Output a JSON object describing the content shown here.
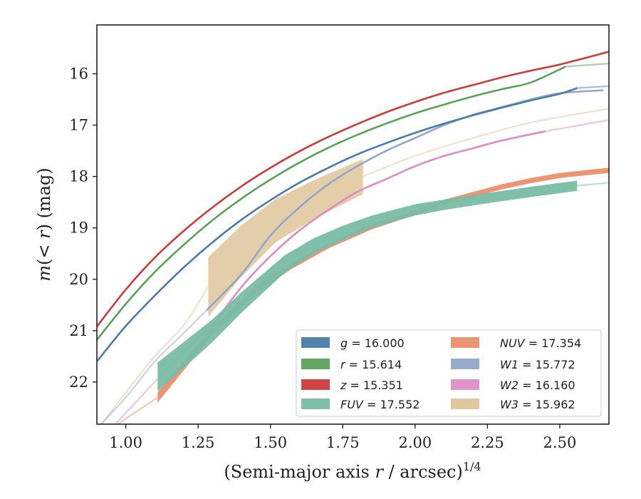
{
  "chart_data": {
    "type": "line",
    "title": "",
    "xlabel": "(Semi-major axis r / arcsec)",
    "xlabel_parts": {
      "pre": "(Semi-major axis ",
      "var": "r",
      "post": " / arcsec)",
      "sup": "1/4"
    },
    "ylabel": "m(< r) (mag)",
    "ylabel_parts": {
      "m": "m",
      "open": "(",
      "lt": "< ",
      "r": "r",
      "close": ")",
      "unit": " (mag)"
    },
    "xlim": [
      0.9,
      2.67
    ],
    "ylim": [
      22.82,
      15.05
    ],
    "y_inverted": true,
    "grid": false,
    "x_ticks": [
      "1.00",
      "1.25",
      "1.50",
      "1.75",
      "2.00",
      "2.25",
      "2.50"
    ],
    "y_ticks": [
      "16",
      "17",
      "18",
      "19",
      "20",
      "21",
      "22"
    ],
    "legend": {
      "placement": "lower-right",
      "columns": 2
    },
    "series": [
      {
        "name": "g = 16.000",
        "key": "g",
        "color": "#4c7ba7",
        "style": "line",
        "x": [
          0.9,
          1.0,
          1.1,
          1.2,
          1.3,
          1.4,
          1.5,
          1.6,
          1.7,
          1.8,
          1.9,
          2.0,
          2.1,
          2.2,
          2.3,
          2.4,
          2.5,
          2.56
        ],
        "y": [
          21.6,
          20.91,
          20.32,
          19.77,
          19.28,
          18.84,
          18.46,
          18.12,
          17.83,
          17.57,
          17.35,
          17.15,
          16.97,
          16.81,
          16.66,
          16.52,
          16.39,
          16.28
        ],
        "faded_x": [
          2.56,
          2.67
        ],
        "faded_y": [
          16.28,
          16.24
        ]
      },
      {
        "name": "r = 15.614",
        "key": "r",
        "color": "#5aa25a",
        "style": "line",
        "x": [
          0.9,
          1.0,
          1.1,
          1.2,
          1.3,
          1.4,
          1.5,
          1.6,
          1.7,
          1.8,
          1.9,
          2.0,
          2.1,
          2.2,
          2.3,
          2.4,
          2.52
        ],
        "y": [
          21.18,
          20.48,
          19.86,
          19.33,
          18.85,
          18.43,
          18.06,
          17.73,
          17.44,
          17.19,
          16.97,
          16.77,
          16.6,
          16.44,
          16.3,
          16.17,
          15.86
        ],
        "faded_x": [
          2.52,
          2.67
        ],
        "faded_y": [
          15.86,
          15.8
        ]
      },
      {
        "name": "z = 15.351",
        "key": "z",
        "color": "#cc3b3b",
        "style": "line",
        "x": [
          0.9,
          1.0,
          1.1,
          1.2,
          1.3,
          1.4,
          1.5,
          1.6,
          1.7,
          1.8,
          1.9,
          2.0,
          2.1,
          2.2,
          2.3,
          2.4,
          2.5,
          2.67
        ],
        "y": [
          20.92,
          20.2,
          19.58,
          19.06,
          18.6,
          18.19,
          17.83,
          17.51,
          17.23,
          16.98,
          16.75,
          16.55,
          16.37,
          16.22,
          16.07,
          15.94,
          15.82,
          15.57
        ],
        "faded_x": [],
        "faded_y": []
      },
      {
        "name": "FUV = 17.552",
        "key": "FUV",
        "color": "#79bda7",
        "style": "band",
        "x": [
          1.11,
          1.3,
          1.4,
          1.55,
          1.65,
          1.75,
          1.85,
          2.0,
          2.1,
          2.25,
          2.4,
          2.56
        ],
        "y": [
          21.9,
          21.0,
          20.45,
          19.7,
          19.35,
          19.1,
          18.88,
          18.65,
          18.55,
          18.42,
          18.3,
          18.18
        ],
        "half_width": [
          0.28,
          0.22,
          0.2,
          0.17,
          0.15,
          0.14,
          0.12,
          0.11,
          0.1,
          0.1,
          0.1,
          0.1
        ],
        "faded_x": [
          2.56,
          2.67
        ],
        "faded_y": [
          18.18,
          18.12
        ]
      },
      {
        "name": "NUV = 17.354",
        "key": "NUV",
        "color": "#ea8f6e",
        "style": "band",
        "x": [
          1.11,
          1.3,
          1.45,
          1.57,
          1.7,
          1.85,
          2.0,
          2.1,
          2.2,
          2.3,
          2.4,
          2.5,
          2.6,
          2.67
        ],
        "y": [
          22.3,
          21.0,
          20.2,
          19.75,
          19.35,
          18.98,
          18.7,
          18.5,
          18.35,
          18.2,
          18.08,
          17.98,
          17.92,
          17.88
        ],
        "half_width": [
          0.1,
          0.08,
          0.07,
          0.06,
          0.05,
          0.05,
          0.05,
          0.05,
          0.05,
          0.05,
          0.05,
          0.05,
          0.05,
          0.05
        ],
        "faded_x": [
          0.95,
          1.11
        ],
        "faded_y": [
          22.9,
          22.3
        ]
      },
      {
        "name": "W1 = 15.772",
        "key": "W1",
        "color": "#94a7c8",
        "style": "line",
        "x": [
          1.28,
          1.4,
          1.5,
          1.6,
          1.7,
          1.8,
          1.9,
          2.0,
          2.1,
          2.2,
          2.3,
          2.4,
          2.5,
          2.65
        ],
        "y": [
          20.6,
          19.9,
          19.15,
          18.6,
          18.15,
          17.8,
          17.5,
          17.25,
          17.0,
          16.8,
          16.65,
          16.5,
          16.38,
          16.32
        ],
        "faded_x": [
          0.9,
          1.0,
          1.1,
          1.2,
          1.28
        ],
        "faded_y": [
          22.9,
          22.3,
          21.6,
          21.05,
          20.6
        ]
      },
      {
        "name": "W2 = 16.160",
        "key": "W2",
        "color": "#dc8ec4",
        "style": "line",
        "x": [
          1.3,
          1.4,
          1.5,
          1.6,
          1.7,
          1.8,
          1.9,
          2.0,
          2.1,
          2.2,
          2.3,
          2.45
        ],
        "y": [
          20.9,
          20.15,
          19.55,
          19.05,
          18.65,
          18.3,
          18.05,
          17.8,
          17.6,
          17.45,
          17.3,
          17.12
        ],
        "faded_x": [
          0.95,
          1.05,
          1.15,
          1.25,
          1.3,
          null,
          2.45,
          2.55,
          2.67
        ],
        "faded_y": [
          22.9,
          22.3,
          21.7,
          21.15,
          20.9,
          null,
          17.12,
          17.02,
          16.9
        ]
      },
      {
        "name": "W3 = 15.962",
        "key": "W3",
        "color": "#dfc49a",
        "style": "band",
        "x": [
          1.285,
          1.4,
          1.52,
          1.65,
          1.82
        ],
        "y": [
          20.15,
          19.45,
          18.85,
          18.45,
          18.0
        ],
        "half_width": [
          0.58,
          0.5,
          0.42,
          0.38,
          0.34
        ],
        "faded_x": [
          0.92,
          1.0,
          1.1,
          1.2,
          1.285,
          null,
          1.82,
          2.0,
          2.2,
          2.4,
          2.67
        ],
        "faded_y": [
          22.8,
          22.2,
          21.5,
          20.9,
          20.15,
          null,
          18.0,
          17.6,
          17.25,
          16.95,
          16.68
        ]
      }
    ]
  }
}
